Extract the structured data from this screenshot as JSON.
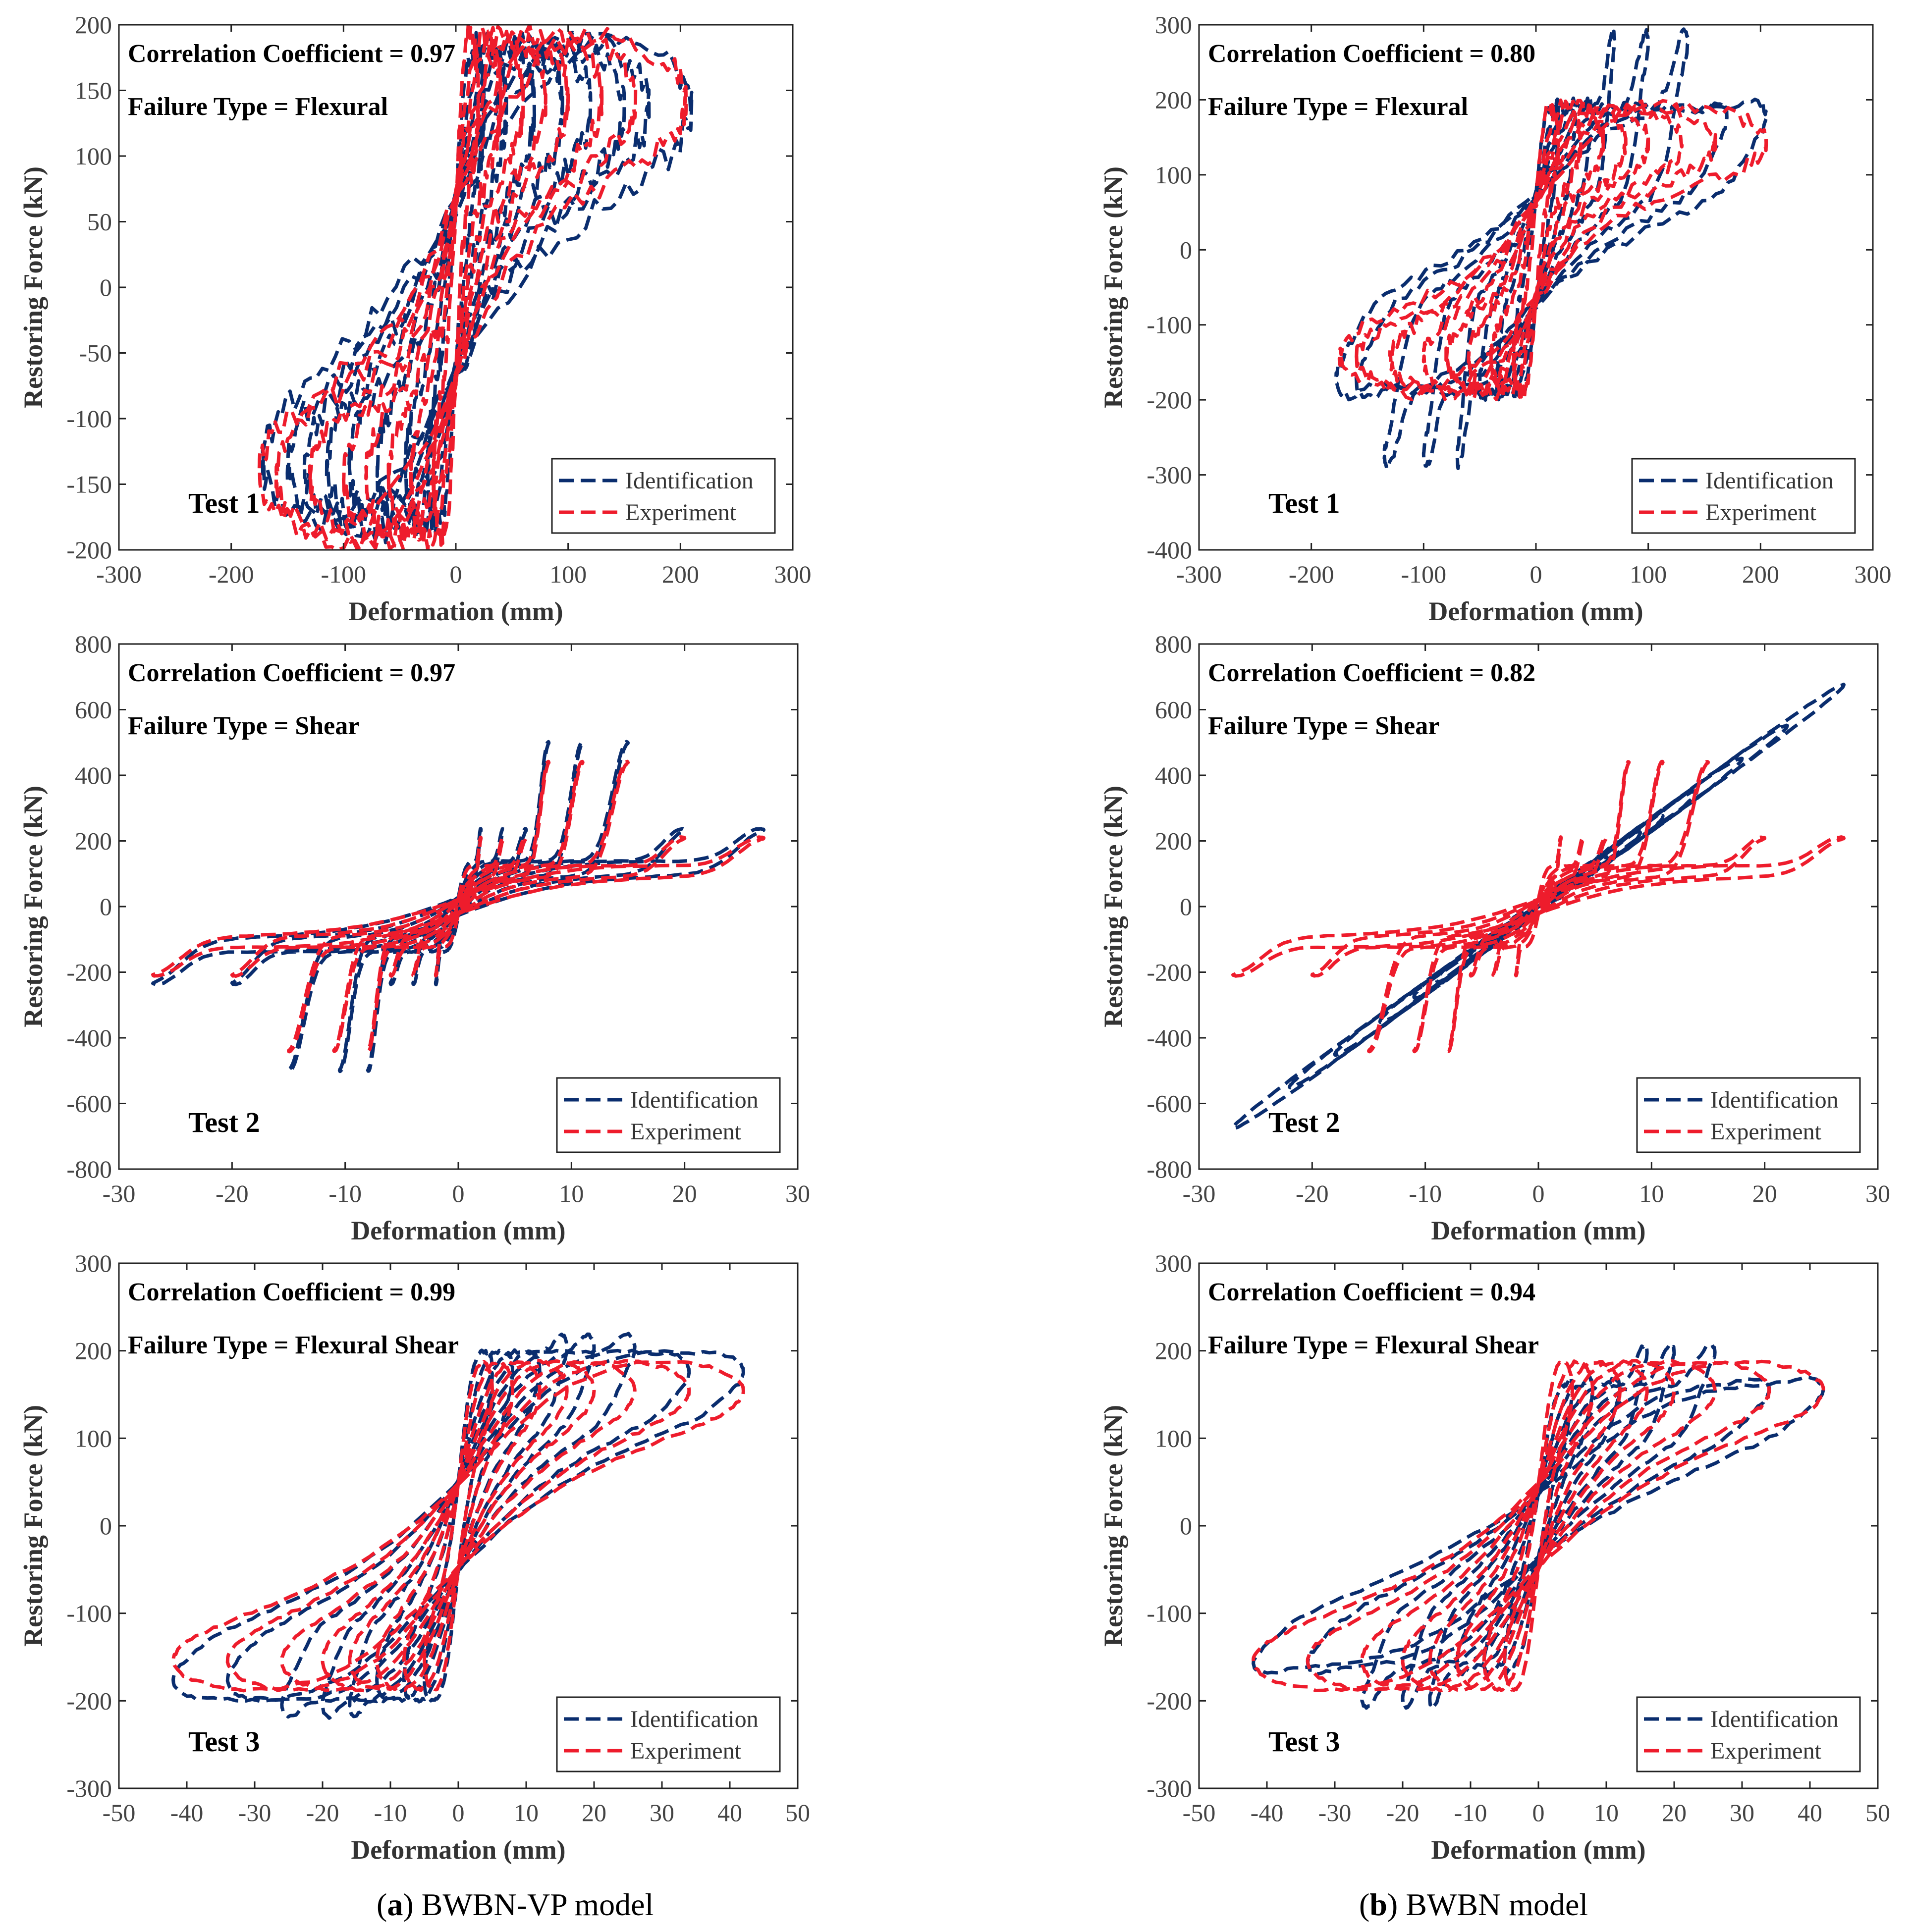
{
  "captions": {
    "a": {
      "letter": "a",
      "text": "BWBN-VP model"
    },
    "b": {
      "letter": "b",
      "text": "BWBN model"
    }
  },
  "colors": {
    "identification": "#0a2d6e",
    "experiment": "#ee1c2c",
    "axis": "#222222",
    "tick_label": "#444444"
  },
  "chart_data": [
    {
      "id": "a1",
      "type": "line",
      "xlabel": "Deformation (mm)",
      "ylabel": "Restoring Force (kN)",
      "xlim": [
        -300,
        300
      ],
      "ylim": [
        -200,
        200
      ],
      "xticks": [
        -300,
        -200,
        -100,
        0,
        100,
        200,
        300
      ],
      "yticks": [
        -200,
        -150,
        -100,
        -50,
        0,
        50,
        100,
        150,
        200
      ],
      "annotations": {
        "corr_label": "Correlation Coefficient = ",
        "corr_value": "0.97",
        "failure_label": "Failure Type = ",
        "failure_value": "Flexural",
        "test_label": "Test 1"
      },
      "legend": {
        "position": "bottom-right",
        "entries": [
          "Identification",
          "Experiment"
        ]
      },
      "series": [
        {
          "name": "Identification",
          "model": {
            "amps": [
              25,
              45,
              70,
              95,
              120,
              150,
              172,
              210
            ],
            "ampMin": [
              25,
              45,
              70,
              95,
              115,
              135,
              150,
              172
            ],
            "f": 140,
            "w": 0.55,
            "k": 2.2,
            "pinch": 0.15,
            "spike": 0,
            "sc": 60,
            "lopside": 0,
            "seed": 1
          }
        },
        {
          "name": "Experiment",
          "model": {
            "amps": [
              20,
              40,
              60,
              80,
              100,
              130,
              160,
              205
            ],
            "ampMin": [
              20,
              40,
              60,
              80,
              100,
              130,
              160,
              175
            ],
            "f": 145,
            "w": 0.5,
            "k": 2.6,
            "pinch": 0.1,
            "spike": 0,
            "sc": 50,
            "lopside": 0,
            "seed": 2
          }
        }
      ]
    },
    {
      "id": "b1",
      "type": "line",
      "xlabel": "Deformation (mm)",
      "ylabel": "Restoring Force (kN)",
      "xlim": [
        -300,
        300
      ],
      "ylim": [
        -400,
        300
      ],
      "xticks": [
        -300,
        -200,
        -100,
        0,
        100,
        200,
        300
      ],
      "yticks": [
        -400,
        -300,
        -200,
        -100,
        0,
        100,
        200,
        300
      ],
      "annotations": {
        "corr_label": "Correlation Coefficient = ",
        "corr_value": "0.80",
        "failure_label": "Failure Type = ",
        "failure_value": "Flexural",
        "test_label": "Test 1"
      },
      "legend": {
        "position": "bottom-right",
        "entries": [
          "Identification",
          "Experiment"
        ]
      },
      "series": [
        {
          "name": "Identification",
          "model": {
            "amps": [
              20,
              35,
              50,
              70,
              100,
              135,
              170,
              205
            ],
            "ampMin": [
              20,
              35,
              50,
              70,
              100,
              135,
              160,
              178
            ],
            "f": 140,
            "w": 0.65,
            "k": 2.0,
            "pinch": 0.2,
            "spike": 140,
            "sc": 30,
            "lopside": 0,
            "seed": 3
          }
        },
        {
          "name": "Experiment",
          "model": {
            "amps": [
              20,
              40,
              60,
              80,
              100,
              130,
              160,
              205
            ],
            "ampMin": [
              20,
              40,
              60,
              80,
              100,
              130,
              160,
              175
            ],
            "f": 145,
            "w": 0.5,
            "k": 2.6,
            "pinch": 0.1,
            "spike": 0,
            "sc": 50,
            "lopside": 0,
            "seed": 4
          }
        }
      ]
    },
    {
      "id": "a2",
      "type": "line",
      "xlabel": "Deformation (mm)",
      "ylabel": "Restoring Force (kN)",
      "xlim": [
        -30,
        30
      ],
      "ylim": [
        -800,
        800
      ],
      "xticks": [
        -30,
        -20,
        -10,
        0,
        10,
        20,
        30
      ],
      "yticks": [
        -800,
        -600,
        -400,
        -200,
        0,
        200,
        400,
        600,
        800
      ],
      "annotations": {
        "corr_label": "Correlation Coefficient = ",
        "corr_value": "0.97",
        "failure_label": "Failure Type = ",
        "failure_value": "Shear",
        "test_label": "Test 2"
      },
      "legend": {
        "position": "bottom-right",
        "entries": [
          "Identification",
          "Experiment"
        ]
      },
      "series": [
        {
          "name": "Identification",
          "model": {
            "amps": [
              2,
              4,
              6,
              8,
              11,
              15,
              20,
              27
            ],
            "ampMin": [
              2,
              4,
              6,
              8,
              10.5,
              15,
              20,
              27
            ],
            "f": 120,
            "w": 0.25,
            "k": 3.0,
            "pinch": 0.1,
            "spike": 380,
            "sc": 6,
            "lopside": 0,
            "seed": 5
          }
        },
        {
          "name": "Experiment",
          "model": {
            "amps": [
              2,
              4,
              6,
              8,
              11,
              15,
              20,
              27
            ],
            "ampMin": [
              2,
              4,
              6,
              8,
              11,
              15,
              20,
              27
            ],
            "f": 110,
            "w": 0.22,
            "k": 3.0,
            "pinch": 0.1,
            "spike": 330,
            "sc": 5,
            "lopside": 0,
            "seed": 6
          }
        }
      ]
    },
    {
      "id": "b2",
      "type": "line",
      "xlabel": "Deformation (mm)",
      "ylabel": "Restoring Force (kN)",
      "xlim": [
        -30,
        30
      ],
      "ylim": [
        -800,
        800
      ],
      "xticks": [
        -30,
        -20,
        -10,
        0,
        10,
        20,
        30
      ],
      "yticks": [
        -800,
        -600,
        -400,
        -200,
        0,
        200,
        400,
        600,
        800
      ],
      "annotations": {
        "corr_label": "Correlation Coefficient = ",
        "corr_value": "0.82",
        "failure_label": "Failure Type = ",
        "failure_value": "Shear",
        "test_label": "Test 2"
      },
      "legend": {
        "position": "bottom-right",
        "entries": [
          "Identification",
          "Experiment"
        ]
      },
      "series": [
        {
          "name": "Identification",
          "model": {
            "amps": [
              3,
              6,
              9,
              11,
              14,
              18,
              22,
              27
            ],
            "ampMin": [
              3,
              6,
              9,
              11,
              14,
              18,
              22,
              27
            ],
            "f": 0,
            "w": 0.35,
            "k": 1.0,
            "pinch": 0.35,
            "spike": 0,
            "sc": 6,
            "lopside": 25,
            "seed": 7
          }
        },
        {
          "name": "Experiment",
          "model": {
            "amps": [
              2,
              4,
              6,
              8,
              11,
              15,
              20,
              27
            ],
            "ampMin": [
              2,
              4,
              6,
              8,
              11,
              15,
              20,
              27
            ],
            "f": 110,
            "w": 0.22,
            "k": 3.0,
            "pinch": 0.1,
            "spike": 330,
            "sc": 5,
            "lopside": 0,
            "seed": 8
          }
        }
      ]
    },
    {
      "id": "a3",
      "type": "line",
      "xlabel": "Deformation (mm)",
      "ylabel": "Restoring Force (kN)",
      "xlim": [
        -50,
        50
      ],
      "ylim": [
        -300,
        300
      ],
      "xticks": [
        -50,
        -40,
        -30,
        -20,
        -10,
        0,
        10,
        20,
        30,
        40,
        50
      ],
      "yticks": [
        -300,
        -200,
        -100,
        0,
        100,
        200,
        300
      ],
      "annotations": {
        "corr_label": "Correlation Coefficient = ",
        "corr_value": "0.99",
        "failure_label": "Failure Type = ",
        "failure_value": "Flexural Shear",
        "test_label": "Test 3"
      },
      "legend": {
        "position": "bottom-right",
        "entries": [
          "Identification",
          "Experiment"
        ]
      },
      "series": [
        {
          "name": "Identification",
          "model": {
            "amps": [
              5,
              8,
              12,
              16,
              20,
              26,
              34,
              42
            ],
            "ampMin": [
              5,
              8,
              12,
              16,
              20,
              26,
              34,
              42
            ],
            "f": 170,
            "w": 0.4,
            "k": 2.0,
            "pinch": 0.25,
            "spike": 40,
            "sc": 10,
            "lopside": 0,
            "seed": 9
          }
        },
        {
          "name": "Experiment",
          "model": {
            "amps": [
              5,
              8,
              12,
              16,
              20,
              26,
              34,
              42
            ],
            "ampMin": [
              5,
              8,
              12,
              16,
              20,
              26,
              34,
              42
            ],
            "f": 160,
            "w": 0.4,
            "k": 2.0,
            "pinch": 0.25,
            "spike": 0,
            "sc": 9,
            "lopside": 0,
            "seed": 10
          }
        }
      ]
    },
    {
      "id": "b3",
      "type": "line",
      "xlabel": "Deformation (mm)",
      "ylabel": "Restoring Force (kN)",
      "xlim": [
        -50,
        50
      ],
      "ylim": [
        -300,
        300
      ],
      "xticks": [
        -50,
        -40,
        -30,
        -20,
        -10,
        0,
        10,
        20,
        30,
        40,
        50
      ],
      "yticks": [
        -300,
        -200,
        -100,
        0,
        100,
        200,
        300
      ],
      "annotations": {
        "corr_label": "Correlation Coefficient = ",
        "corr_value": "0.94",
        "failure_label": "Failure Type = ",
        "failure_value": "Flexural Shear",
        "test_label": "Test 3"
      },
      "legend": {
        "position": "bottom-right",
        "entries": [
          "Identification",
          "Experiment"
        ]
      },
      "series": [
        {
          "name": "Identification",
          "model": {
            "amps": [
              5,
              8,
              12,
              16,
              20,
              26,
              34,
              42
            ],
            "ampMin": [
              5,
              8,
              12,
              16,
              20,
              26,
              34,
              42
            ],
            "f": 150,
            "w": 0.35,
            "k": 1.6,
            "pinch": 0.3,
            "spike": 60,
            "sc": 10,
            "lopside": 0,
            "seed": 11
          }
        },
        {
          "name": "Experiment",
          "model": {
            "amps": [
              5,
              8,
              12,
              16,
              20,
              26,
              34,
              42
            ],
            "ampMin": [
              5,
              8,
              12,
              16,
              20,
              26,
              34,
              42
            ],
            "f": 160,
            "w": 0.4,
            "k": 2.0,
            "pinch": 0.25,
            "spike": 0,
            "sc": 9,
            "lopside": 0,
            "seed": 12
          }
        }
      ]
    }
  ]
}
